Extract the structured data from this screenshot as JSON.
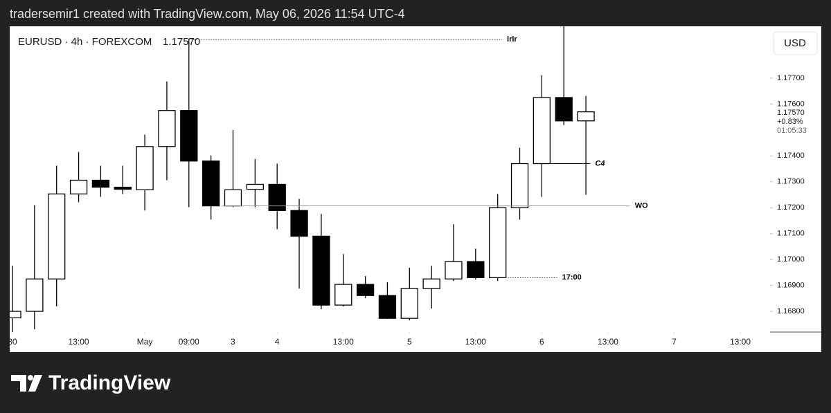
{
  "header": "tradersemir1 created with TradingView.com, May 06, 2026 11:54 UTC-4",
  "brand": "TradingView",
  "chart_data": {
    "type": "candlestick",
    "symbol": "EURUSD · 4h · FOREXCOM",
    "currency": "USD",
    "last_price": {
      "value": 1.1757,
      "label": "1.17570"
    },
    "change": "+0.83%",
    "countdown": "01:05:33",
    "up_color": "#ffffff",
    "down_color": "#000000",
    "x": [
      0,
      1,
      2,
      3,
      4,
      5,
      6,
      7,
      8,
      9,
      10,
      11,
      12,
      13,
      14,
      15,
      16,
      17,
      18,
      19,
      20,
      21,
      22,
      23,
      24,
      25,
      26
    ],
    "open": [
      1.16775,
      1.168,
      1.16925,
      1.17253,
      1.17306,
      1.17279,
      1.17269,
      1.17436,
      1.17575,
      1.1738,
      1.17207,
      1.17271,
      1.1729,
      1.17189,
      1.1709,
      1.16824,
      1.16904,
      1.16861,
      1.16773,
      1.16888,
      1.16925,
      1.16992,
      1.1693,
      1.172,
      1.1737,
      1.17625,
      1.17535
    ],
    "high": [
      1.16976,
      1.1721,
      1.17362,
      1.17415,
      1.17362,
      1.17362,
      1.17482,
      1.17687,
      1.17852,
      1.17402,
      1.175,
      1.17388,
      1.1737,
      1.17234,
      1.17176,
      1.17021,
      1.16936,
      1.16912,
      1.16968,
      1.16976,
      1.17136,
      1.17042,
      1.17253,
      1.17431,
      1.17711,
      1.179,
      1.17631
    ],
    "low": [
      1.1672,
      1.16731,
      1.16819,
      1.17221,
      1.17242,
      1.17253,
      1.17189,
      1.17306,
      1.17202,
      1.17154,
      1.17202,
      1.17202,
      1.17117,
      1.16888,
      1.16808,
      1.16819,
      1.16851,
      1.16771,
      1.16765,
      1.16811,
      1.16917,
      1.16923,
      1.16917,
      1.17154,
      1.17242,
      1.17519,
      1.1725
    ],
    "close": [
      1.168,
      1.16925,
      1.17253,
      1.17306,
      1.17279,
      1.17271,
      1.17436,
      1.17575,
      1.1738,
      1.17207,
      1.17269,
      1.1729,
      1.17189,
      1.1709,
      1.16824,
      1.16904,
      1.16861,
      1.16773,
      1.16888,
      1.16925,
      1.16992,
      1.1693,
      1.172,
      1.1737,
      1.17625,
      1.17535,
      1.1757
    ],
    "xlim": [
      -0.126,
      34.35
    ],
    "xticks": [
      {
        "value": 0,
        "label": "30"
      },
      {
        "value": 3,
        "label": "13:00"
      },
      {
        "value": 6,
        "label": "May"
      },
      {
        "value": 8,
        "label": "09:00"
      },
      {
        "value": 10,
        "label": "3"
      },
      {
        "value": 12,
        "label": "4"
      },
      {
        "value": 15,
        "label": "13:00"
      },
      {
        "value": 18,
        "label": "5"
      },
      {
        "value": 21,
        "label": "13:00"
      },
      {
        "value": 24,
        "label": "6"
      },
      {
        "value": 27,
        "label": "13:00"
      },
      {
        "value": 30,
        "label": "7"
      },
      {
        "value": 33,
        "label": "13:00"
      }
    ],
    "ylim": [
      1.1672,
      1.179
    ],
    "yticks": [
      {
        "value": 1.168,
        "label": "1.16800"
      },
      {
        "value": 1.169,
        "label": "1.16900"
      },
      {
        "value": 1.17,
        "label": "1.17000"
      },
      {
        "value": 1.171,
        "label": "1.17100"
      },
      {
        "value": 1.172,
        "label": "1.17200"
      },
      {
        "value": 1.173,
        "label": "1.17300"
      },
      {
        "value": 1.174,
        "label": "1.17400"
      },
      {
        "value": 1.176,
        "label": "1.17600"
      },
      {
        "value": 1.177,
        "label": "1.17700"
      }
    ],
    "annotations": [
      {
        "label": "lrlr",
        "value": 1.17849,
        "x_range": [
          8,
          22.2
        ],
        "style": "dotted"
      },
      {
        "label": "C4",
        "value": 1.1737,
        "x_range": [
          24.36,
          26.2
        ],
        "style": "solid"
      },
      {
        "label": "WO",
        "value": 1.17207,
        "x_range": [
          9.48,
          28.0
        ],
        "style": "gray"
      },
      {
        "label": "17:00",
        "value": 1.1693,
        "x_range": [
          22.35,
          24.7
        ],
        "style": "dotted"
      }
    ]
  }
}
